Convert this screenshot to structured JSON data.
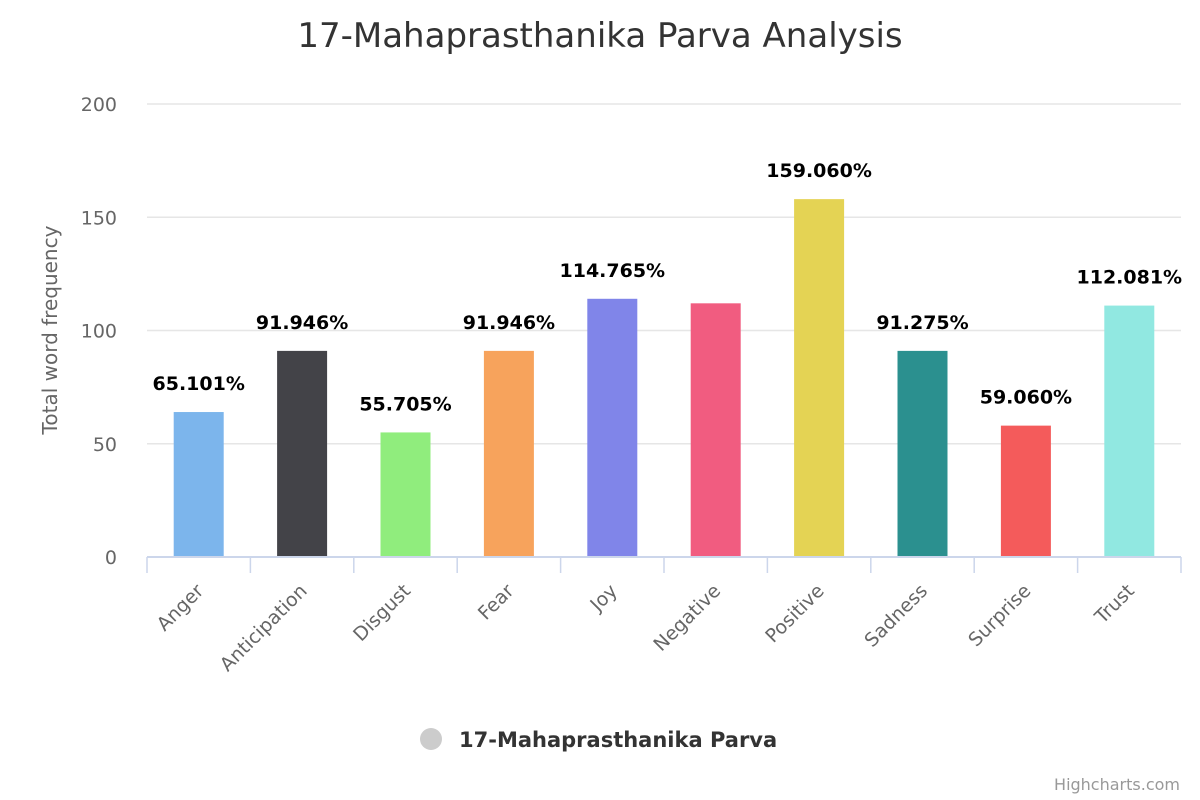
{
  "chart_data": {
    "type": "bar",
    "title": "17-Mahaprasthanika Parva Analysis",
    "ylabel": "Total word frequency",
    "ylim": [
      0,
      200
    ],
    "yticks": [
      0,
      50,
      100,
      150,
      200
    ],
    "categories": [
      "Anger",
      "Anticipation",
      "Disgust",
      "Fear",
      "Joy",
      "Negative",
      "Positive",
      "Sadness",
      "Surprise",
      "Trust"
    ],
    "values": [
      64,
      91,
      55,
      91,
      114,
      112,
      158,
      91,
      58,
      111
    ],
    "data_labels": [
      "65.101%",
      "91.946%",
      "55.705%",
      "91.946%",
      "114.765%",
      "",
      "159.060%",
      "91.275%",
      "59.060%",
      "112.081%"
    ],
    "colors": [
      "#7cb5ec",
      "#434348",
      "#90ed7d",
      "#f7a35c",
      "#8085e9",
      "#f15c80",
      "#e4d354",
      "#2b908f",
      "#f45b5b",
      "#91e8e1"
    ],
    "grid": true,
    "legend": {
      "position": "bottom-center",
      "label": "17-Mahaprasthanika Parva",
      "marker_color": "#cccccc"
    }
  },
  "credit": "Highcharts.com"
}
